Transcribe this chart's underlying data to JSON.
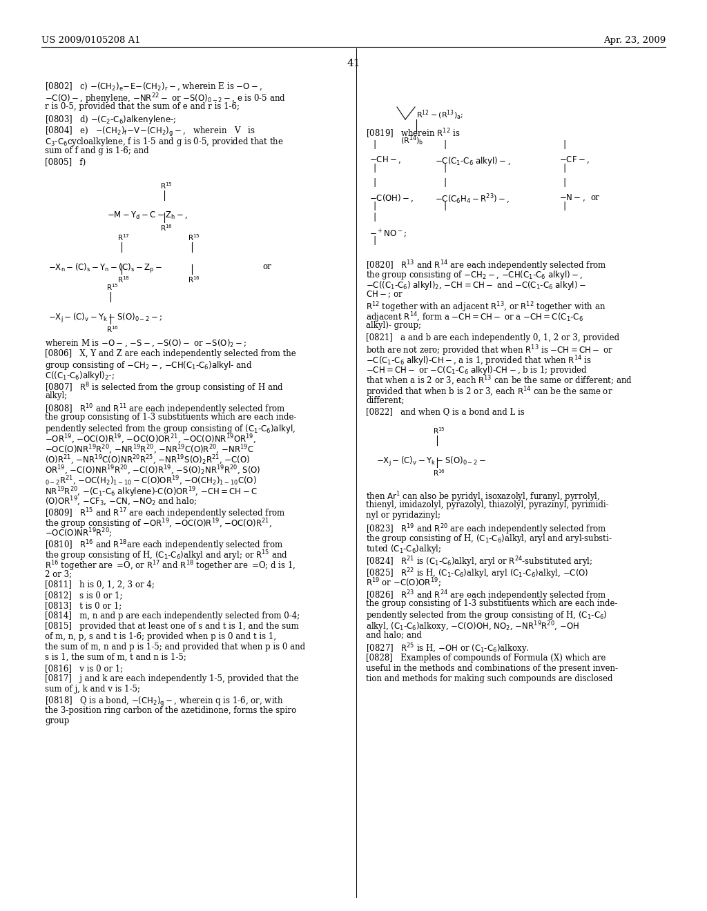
{
  "bg_color": "#ffffff",
  "header_left": "US 2009/0105208 A1",
  "header_right": "Apr. 23, 2009",
  "page_number": "41"
}
